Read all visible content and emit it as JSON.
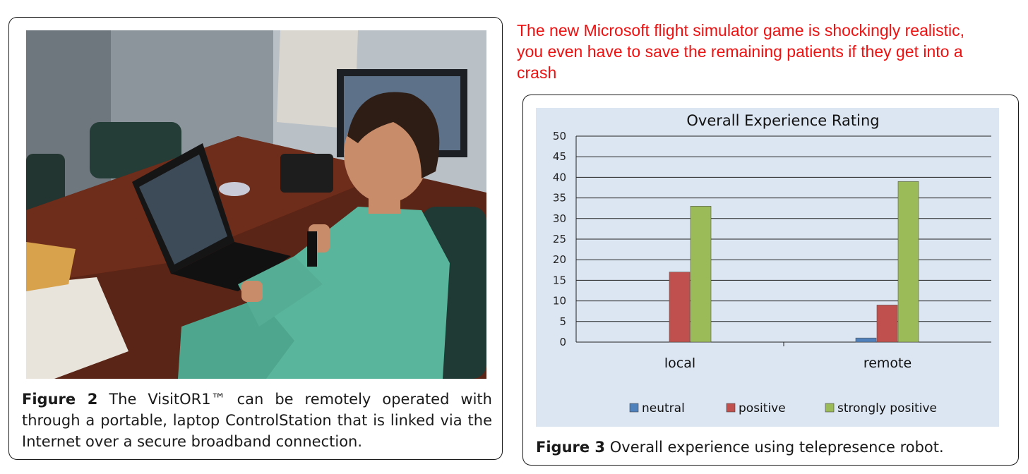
{
  "meme": {
    "text": "The new Microsoft flight simulator game is shockingly realistic, you even have to save the remaining patients if they get into a crash",
    "color": "#ee1111"
  },
  "figure2": {
    "label": "Figure 2",
    "caption": " The VisitOR1™ can be remotely operated with through a portable, laptop ControlStation that is linked via the Internet over a secure broadband connection."
  },
  "figure3": {
    "label": "Figure 3",
    "caption": " Overall experience using telepresence robot."
  },
  "chart_data": {
    "type": "bar",
    "title": "Overall Experience Rating",
    "categories": [
      "local",
      "remote"
    ],
    "series": [
      {
        "name": "neutral",
        "values": [
          0,
          1
        ],
        "color": "#4f81bd"
      },
      {
        "name": "positive",
        "values": [
          17,
          9
        ],
        "color": "#c0504d"
      },
      {
        "name": "strongly positive",
        "values": [
          33,
          39
        ],
        "color": "#9bbb59"
      }
    ],
    "ylim": [
      0,
      50
    ],
    "yticks": [
      "0",
      "5",
      "10",
      "15",
      "20",
      "25",
      "30",
      "35",
      "40",
      "45",
      "50"
    ],
    "grid": true,
    "legend": "bottom",
    "background": "#dce6f2"
  }
}
